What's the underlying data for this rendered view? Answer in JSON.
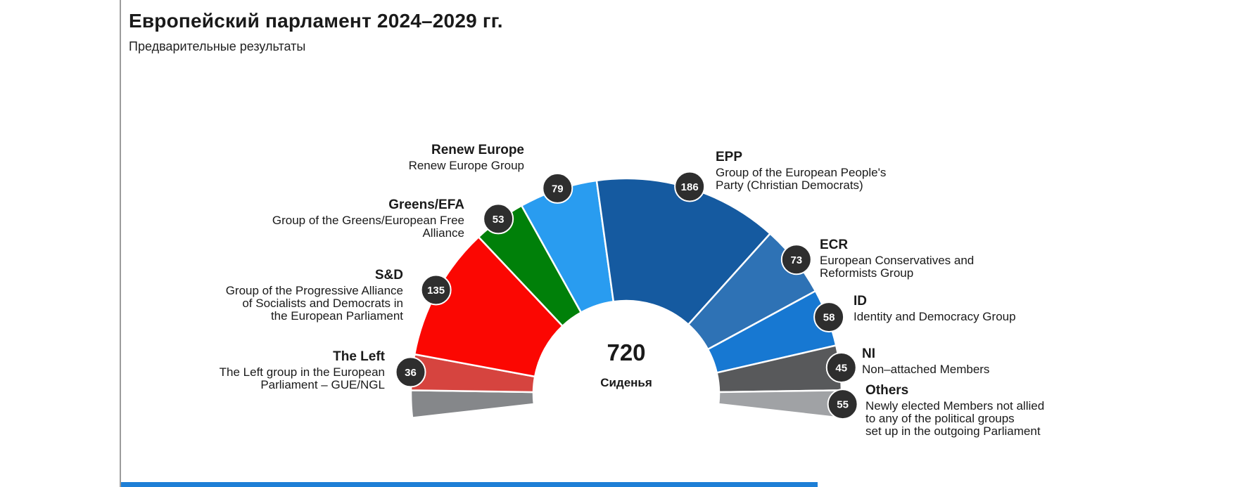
{
  "chart_data": {
    "type": "hemicycle",
    "title": "Европейский парламент 2024–2029 гг.",
    "subtitle": "Предварительные результаты",
    "total_seats": 720,
    "total_seats_label": "720",
    "seats_word": "Сиденья",
    "legend_position": "around-arc",
    "badge_color": "#2e2e2e",
    "badge_text_color": "#ffffff",
    "accent_bar_color": "#1e7fd6",
    "groups": [
      {
        "abbr": "The Left",
        "name": "The Left group in the European\nParliament – GUE/NGL",
        "seats": 36,
        "color": "#d6443f"
      },
      {
        "abbr": "S&D",
        "name": "Group of the Progressive Alliance\nof Socialists and Democrats in\nthe European Parliament",
        "seats": 135,
        "color": "#fb0702"
      },
      {
        "abbr": "Greens/EFA",
        "name": "Group of the Greens/European Free\nAlliance",
        "seats": 53,
        "color": "#008009"
      },
      {
        "abbr": "Renew Europe",
        "name": "Renew Europe Group",
        "seats": 79,
        "color": "#299cf0"
      },
      {
        "abbr": "EPP",
        "name": "Group of the European People's\nParty (Christian Democrats)",
        "seats": 186,
        "color": "#155aa0"
      },
      {
        "abbr": "ECR",
        "name": "European Conservatives and\nReformists Group",
        "seats": 73,
        "color": "#2e72b5"
      },
      {
        "abbr": "ID",
        "name": "Identity and Democracy Group",
        "seats": 58,
        "color": "#1778d2"
      },
      {
        "abbr": "NI",
        "name": "Non–attached Members",
        "seats": 45,
        "color": "#58595b"
      },
      {
        "abbr": "Others",
        "name": "Newly elected Members not allied\nto any of the political groups\nset up in the outgoing Parliament",
        "seats": 55,
        "color": "#a0a2a5",
        "color_left_half": "#85878a",
        "split_across_ends": true
      }
    ]
  }
}
